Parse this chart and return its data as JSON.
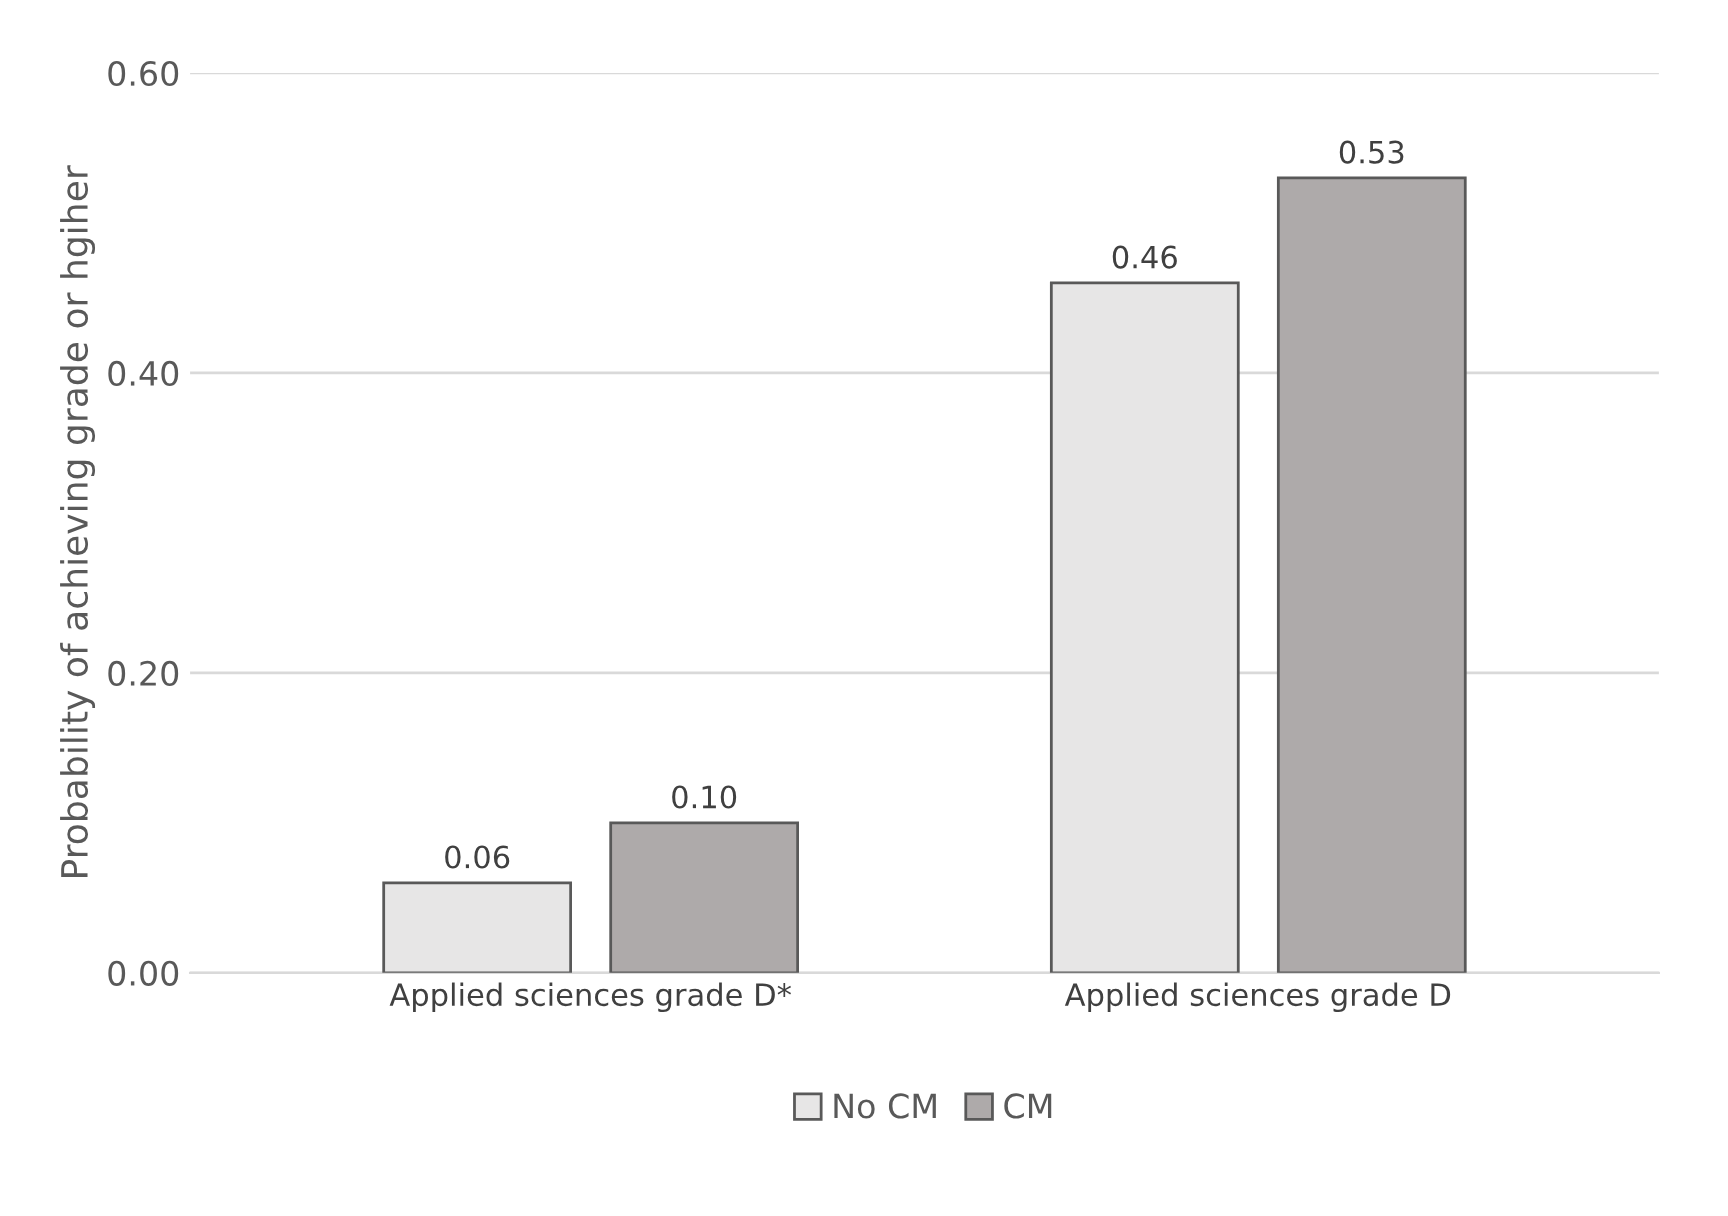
{
  "chart_data": {
    "type": "bar",
    "ylabel": "Probability of achieving grade or hgiher",
    "categories": [
      "Applied sciences grade D*",
      "Applied sciences grade D"
    ],
    "series": [
      {
        "name": "No CM",
        "color": "#e7e6e6",
        "values": [
          0.06,
          0.46
        ],
        "value_labels": [
          "0.06",
          "0.46"
        ]
      },
      {
        "name": "CM",
        "color": "#aeaaaa",
        "values": [
          0.1,
          0.53
        ],
        "value_labels": [
          "0.10",
          "0.53"
        ]
      }
    ],
    "ylim": [
      0,
      0.6
    ],
    "yticks": [
      {
        "value": 0,
        "label": "0.00"
      },
      {
        "value": 0.2,
        "label": "0.20"
      },
      {
        "value": 0.4,
        "label": "0.40"
      },
      {
        "value": 0.6,
        "label": "0.60"
      }
    ],
    "grid": "y",
    "legend": "bottom"
  }
}
